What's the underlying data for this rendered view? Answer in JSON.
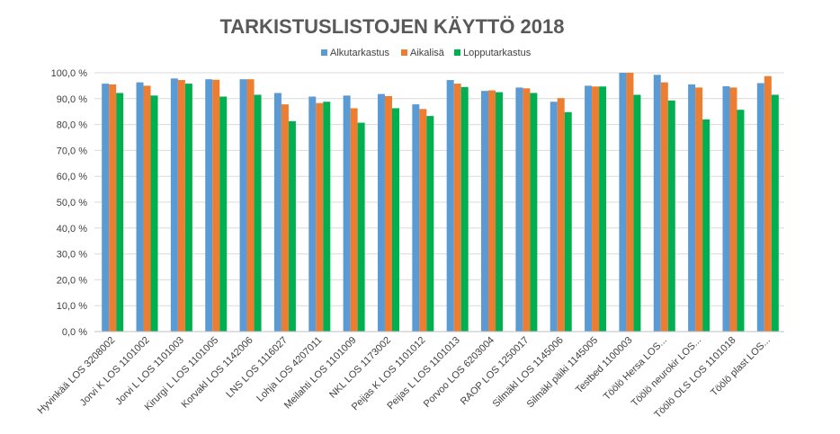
{
  "chart_data": {
    "type": "bar",
    "title": "TARKISTUSLISTOJEN KÄYTTÖ 2018",
    "xlabel": "",
    "ylabel": "",
    "ylim": [
      0,
      100
    ],
    "yticks": [
      0,
      10,
      20,
      30,
      40,
      50,
      60,
      70,
      80,
      90,
      100
    ],
    "ytick_labels": [
      "0,0 %",
      "10,0 %",
      "20,0 %",
      "30,0 %",
      "40,0 %",
      "50,0 %",
      "60,0 %",
      "70,0 %",
      "80,0 %",
      "90,0 %",
      "100,0 %"
    ],
    "grid": true,
    "legend_position": "top-center",
    "categories": [
      "Hyvinkää LOS 3208002",
      "Jorvi K LOS 1101002",
      "Jorvi L LOS 1101003",
      "Kirurgi L LOS 1101005",
      "Korvakl LOS 1142006",
      "LNS LOS 1116027",
      "Lohja LOS 4207011",
      "Meilahti LOS 1101009",
      "NKL LOS 1173002",
      "Peijas K LOS 1101012",
      "Peijas L LOS 1101013",
      "Porvoo LOS 6203004",
      "RAOP LOS 1250017",
      "Silmäkl LOS 1145006",
      "Silmäkl päiki 1145005",
      "Testbed 1100003",
      "Töölö Hersa LOS...",
      "Töölö neurokir LOS...",
      "Töölö OLS LOS 1101018",
      "Töölö plast LOS..."
    ],
    "series": [
      {
        "name": "Alkutarkastus",
        "color": "#5B9BD5",
        "values": [
          95.8,
          96.3,
          97.8,
          97.5,
          97.5,
          92.2,
          90.8,
          91.2,
          91.8,
          87.8,
          97.2,
          93.0,
          94.3,
          88.8,
          95.0,
          100.0,
          99.2,
          95.5,
          94.8,
          96.0
        ]
      },
      {
        "name": "Aikalisä",
        "color": "#ED7D31",
        "values": [
          95.5,
          95.0,
          97.2,
          97.3,
          97.5,
          87.8,
          88.3,
          86.3,
          91.0,
          86.0,
          95.8,
          93.2,
          94.0,
          90.2,
          94.7,
          100.0,
          96.3,
          94.3,
          94.3,
          98.7
        ]
      },
      {
        "name": "Lopputarkastus",
        "color": "#00B050",
        "values": [
          92.2,
          91.2,
          95.8,
          90.8,
          91.5,
          81.3,
          88.8,
          80.7,
          86.3,
          83.3,
          94.5,
          92.5,
          92.2,
          84.8,
          94.7,
          91.5,
          89.3,
          82.0,
          85.7,
          91.5
        ]
      }
    ]
  }
}
